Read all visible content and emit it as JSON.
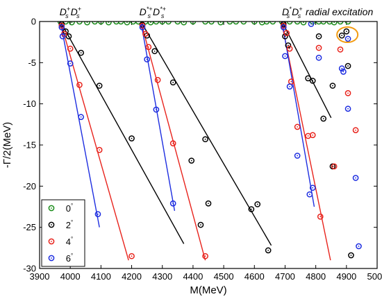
{
  "chart_data": {
    "type": "scatter",
    "xlabel": "M(MeV)",
    "ylabel": "-Γ/2(MeV)",
    "xlim": [
      3900,
      5000
    ],
    "ylim": [
      -30,
      0
    ],
    "x_ticks": [
      3900,
      4000,
      4100,
      4200,
      4300,
      4400,
      4500,
      4600,
      4700,
      4800,
      4900,
      5000
    ],
    "y_ticks": [
      0,
      -5,
      -10,
      -15,
      -20,
      -25,
      -30
    ],
    "legend_placement": "bottom-left",
    "annotations": [
      {
        "base": "D",
        "sub": "s",
        "sup": "+",
        "base2": "D",
        "sub2": "s",
        "sup2": "+",
        "x": 3965,
        "y": 0.5
      },
      {
        "base": "D",
        "sub": "s",
        "sup": "*+",
        "base2": "D",
        "sub2": "s",
        "sup2": "*+",
        "x": 4225,
        "y": 0.5
      },
      {
        "base": "D",
        "sub": "s",
        "sup": "*",
        "base2": "D",
        "sub2": "s",
        "sup2": "+",
        "x": 4690,
        "y": 0.5,
        "suffix": "radial excitation"
      }
    ],
    "highlight": {
      "x": 4903,
      "y": -1.6,
      "color": "#f39c12"
    },
    "series": [
      {
        "name": "0",
        "degree": "°",
        "color": "#1a8c1a",
        "points": [
          [
            3968,
            0
          ],
          [
            3985,
            0
          ],
          [
            4005,
            -0.1
          ],
          [
            4030,
            0
          ],
          [
            4055,
            -0.1
          ],
          [
            4080,
            0
          ],
          [
            4100,
            0
          ],
          [
            4125,
            -0.1
          ],
          [
            4150,
            0
          ],
          [
            4165,
            0
          ],
          [
            4185,
            -0.1
          ],
          [
            4205,
            0
          ],
          [
            4222,
            0
          ],
          [
            4245,
            0
          ],
          [
            4262,
            -0.1
          ],
          [
            4280,
            0
          ],
          [
            4300,
            0
          ],
          [
            4320,
            0
          ],
          [
            4350,
            0
          ],
          [
            4370,
            -0.1
          ],
          [
            4400,
            0
          ],
          [
            4440,
            0
          ],
          [
            4460,
            0
          ],
          [
            4490,
            -0.1
          ],
          [
            4520,
            0
          ],
          [
            4540,
            0
          ],
          [
            4565,
            0
          ],
          [
            4600,
            0
          ],
          [
            4625,
            -0.1
          ],
          [
            4640,
            0
          ],
          [
            4660,
            0
          ],
          [
            4690,
            0
          ],
          [
            4715,
            0
          ],
          [
            4740,
            0
          ],
          [
            4760,
            -0.1
          ],
          [
            4790,
            0
          ],
          [
            4810,
            0
          ],
          [
            4825,
            0
          ],
          [
            4845,
            0
          ],
          [
            4860,
            -0.1
          ],
          [
            4880,
            0
          ],
          [
            4905,
            0
          ]
        ],
        "fit_lines": []
      },
      {
        "name": "2",
        "degree": "°",
        "color": "#000000",
        "points": [
          [
            3972,
            -0.3
          ],
          [
            3985,
            -1.2
          ],
          [
            3995,
            -1.8
          ],
          [
            4035,
            -3.8
          ],
          [
            4095,
            -7.8
          ],
          [
            4200,
            -14.2
          ],
          [
            4235,
            -0.4
          ],
          [
            4250,
            -1.7
          ],
          [
            4275,
            -3.6
          ],
          [
            4335,
            -7.4
          ],
          [
            4440,
            -14.3
          ],
          [
            4395,
            -16.9
          ],
          [
            4450,
            -22.1
          ],
          [
            4425,
            -24.7
          ],
          [
            4590,
            -22.8
          ],
          [
            4610,
            -22.2
          ],
          [
            4645,
            -27.8
          ],
          [
            4695,
            -0.3
          ],
          [
            4700,
            -1.8
          ],
          [
            4710,
            -2.9
          ],
          [
            4775,
            -6.9
          ],
          [
            4790,
            -7.2
          ],
          [
            4825,
            -11.8
          ],
          [
            4855,
            -17.6
          ],
          [
            4810,
            -1.8
          ],
          [
            4855,
            -7.8
          ],
          [
            4885,
            -1.7
          ],
          [
            4900,
            -1.2
          ],
          [
            4905,
            -5.4
          ],
          [
            4915,
            -28.4
          ]
        ],
        "fit_lines": [
          [
            [
              3968,
              0
            ],
            [
              4370,
              -27.0
            ]
          ],
          [
            [
              4230,
              0
            ],
            [
              4655,
              -27.2
            ]
          ],
          [
            [
              4690,
              0
            ],
            [
              4850,
              -11.7
            ]
          ]
        ]
      },
      {
        "name": "4",
        "degree": "°",
        "color": "#e8231c",
        "points": [
          [
            3972,
            -0.5
          ],
          [
            3980,
            -1.5
          ],
          [
            4000,
            -3.3
          ],
          [
            4030,
            -7.7
          ],
          [
            4095,
            -15.6
          ],
          [
            4200,
            -28.5
          ],
          [
            4235,
            -0.5
          ],
          [
            4245,
            -1.5
          ],
          [
            4255,
            -3.1
          ],
          [
            4285,
            -7.1
          ],
          [
            4335,
            -14.8
          ],
          [
            4440,
            -28.5
          ],
          [
            4695,
            -0.5
          ],
          [
            4705,
            -1.4
          ],
          [
            4715,
            -3.3
          ],
          [
            4720,
            -7.3
          ],
          [
            4740,
            -12.8
          ],
          [
            4775,
            -13.9
          ],
          [
            4790,
            -13.8
          ],
          [
            4815,
            -23.7
          ],
          [
            4810,
            -3.2
          ],
          [
            4880,
            -3.4
          ],
          [
            4905,
            -8.7
          ],
          [
            4930,
            -13.2
          ],
          [
            4860,
            -17.6
          ]
        ],
        "fit_lines": [
          [
            [
              3968,
              0
            ],
            [
              4190,
              -29.0
            ]
          ],
          [
            [
              4230,
              0
            ],
            [
              4440,
              -29.0
            ]
          ],
          [
            [
              4688,
              0
            ],
            [
              4848,
              -29.0
            ]
          ]
        ]
      },
      {
        "name": "6",
        "degree": "°",
        "color": "#1d2de0",
        "points": [
          [
            3972,
            -0.7
          ],
          [
            3975,
            -1.8
          ],
          [
            4000,
            -5.1
          ],
          [
            4035,
            -11.6
          ],
          [
            4090,
            -23.4
          ],
          [
            4235,
            -0.7
          ],
          [
            4250,
            -4.6
          ],
          [
            4280,
            -10.7
          ],
          [
            4335,
            -22.1
          ],
          [
            4695,
            -0.7
          ],
          [
            4700,
            -4.2
          ],
          [
            4715,
            -7.9
          ],
          [
            4740,
            -16.3
          ],
          [
            4780,
            -21.0
          ],
          [
            4790,
            -20.2
          ],
          [
            4785,
            -0.3
          ],
          [
            4810,
            -4.4
          ],
          [
            4885,
            -5.7
          ],
          [
            4890,
            -6.1
          ],
          [
            4905,
            -2.1
          ],
          [
            4905,
            -10.6
          ],
          [
            4930,
            -19.0
          ],
          [
            4940,
            -27.3
          ]
        ],
        "fit_lines": [
          [
            [
              3968,
              0
            ],
            [
              4095,
              -25.0
            ]
          ],
          [
            [
              4230,
              0
            ],
            [
              4340,
              -23.0
            ]
          ],
          [
            [
              4690,
              0
            ],
            [
              4795,
              -22.5
            ]
          ]
        ]
      }
    ]
  }
}
